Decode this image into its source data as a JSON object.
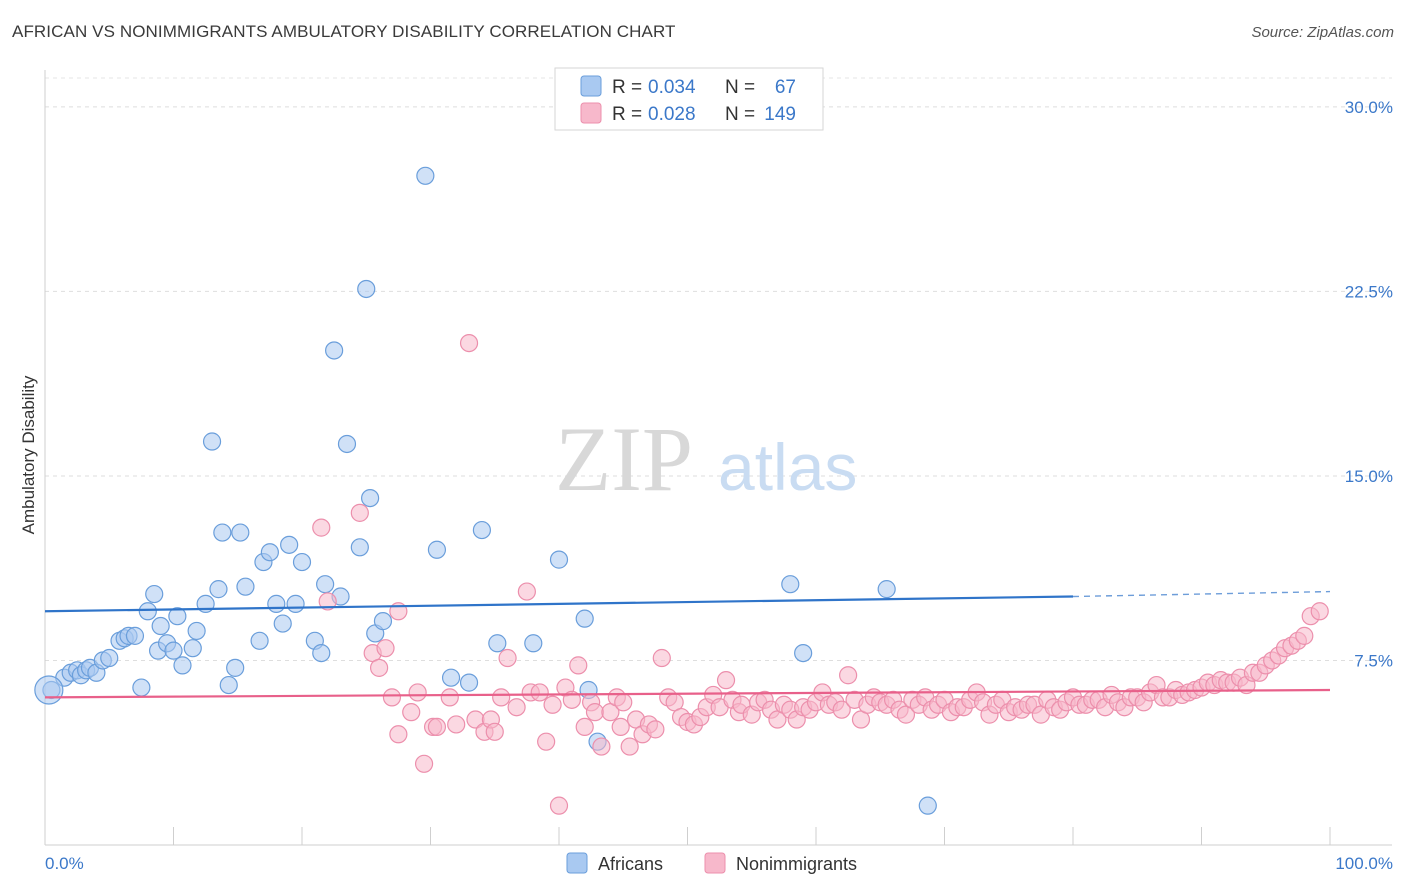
{
  "header": {
    "title": "AFRICAN VS NONIMMIGRANTS AMBULATORY DISABILITY CORRELATION CHART",
    "source": "Source: ZipAtlas.com"
  },
  "watermark": {
    "zip": "ZIP",
    "atlas": "atlas"
  },
  "legend": {
    "rows": [
      {
        "r_label": "R = ",
        "r_value": "0.034",
        "n_label": "N = ",
        "n_value": "67",
        "color": "#a9c9f1"
      },
      {
        "r_label": "R = ",
        "r_value": "0.028",
        "n_label": "N = ",
        "n_value": "149",
        "color": "#f7b8cb"
      }
    ]
  },
  "chart_data": {
    "type": "scatter",
    "title": "AFRICAN VS NONIMMIGRANTS AMBULATORY DISABILITY CORRELATION CHART",
    "ylabel": "Ambulatory Disability",
    "xlabel": "",
    "xlim": [
      0,
      100
    ],
    "ylim": [
      0,
      31.5
    ],
    "x_tick_labels": [
      "0.0%",
      "100.0%"
    ],
    "y_ticks": [
      7.5,
      15.0,
      22.5,
      30.0
    ],
    "y_tick_labels": [
      "7.5%",
      "15.0%",
      "22.5%",
      "30.0%"
    ],
    "grid": "horizontal dashed",
    "legend_position": "top-center",
    "series": [
      {
        "name": "Africans",
        "color": "#a9c9f1",
        "stroke": "#6a9edb",
        "trend": {
          "x0": 0,
          "y0": 9.5,
          "x1": 80,
          "y1": 10.1,
          "dashed_to": 100,
          "y_dashed_end": 10.3,
          "color": "#2f74c9"
        },
        "points": [
          [
            0.5,
            6.3
          ],
          [
            1.5,
            6.8
          ],
          [
            2.0,
            7.0
          ],
          [
            2.5,
            7.1
          ],
          [
            2.8,
            6.9
          ],
          [
            3.2,
            7.1
          ],
          [
            3.5,
            7.2
          ],
          [
            4,
            7.0
          ],
          [
            4.5,
            7.5
          ],
          [
            5,
            7.6
          ],
          [
            5.8,
            8.3
          ],
          [
            6.2,
            8.4
          ],
          [
            6.5,
            8.5
          ],
          [
            7,
            8.5
          ],
          [
            8.0,
            9.5
          ],
          [
            7.5,
            6.4
          ],
          [
            8.5,
            10.2
          ],
          [
            8.8,
            7.9
          ],
          [
            9.0,
            8.9
          ],
          [
            9.5,
            8.2
          ],
          [
            10,
            7.9
          ],
          [
            10.3,
            9.3
          ],
          [
            10.7,
            7.3
          ],
          [
            11.5,
            8.0
          ],
          [
            11.8,
            8.7
          ],
          [
            12.5,
            9.8
          ],
          [
            13,
            16.4
          ],
          [
            13.5,
            10.4
          ],
          [
            13.8,
            12.7
          ],
          [
            14.3,
            6.5
          ],
          [
            14.8,
            7.2
          ],
          [
            15.2,
            12.7
          ],
          [
            15.6,
            10.5
          ],
          [
            16.7,
            8.3
          ],
          [
            17,
            11.5
          ],
          [
            17.5,
            11.9
          ],
          [
            18,
            9.8
          ],
          [
            18.5,
            9.0
          ],
          [
            19,
            12.2
          ],
          [
            19.5,
            9.8
          ],
          [
            20,
            11.5
          ],
          [
            21,
            8.3
          ],
          [
            21.5,
            7.8
          ],
          [
            21.8,
            10.6
          ],
          [
            22.5,
            20.1
          ],
          [
            23,
            10.1
          ],
          [
            23.5,
            16.3
          ],
          [
            24.5,
            12.1
          ],
          [
            25,
            22.6
          ],
          [
            25.3,
            14.1
          ],
          [
            25.7,
            8.6
          ],
          [
            26.3,
            9.1
          ],
          [
            29.6,
            27.2
          ],
          [
            30.5,
            12.0
          ],
          [
            31.6,
            6.8
          ],
          [
            33,
            6.6
          ],
          [
            34,
            12.8
          ],
          [
            35.2,
            8.2
          ],
          [
            38,
            8.2
          ],
          [
            40,
            11.6
          ],
          [
            42,
            9.2
          ],
          [
            42.3,
            6.3
          ],
          [
            43,
            4.2
          ],
          [
            58,
            10.6
          ],
          [
            59,
            7.8
          ],
          [
            65.5,
            10.4
          ],
          [
            68.7,
            1.6
          ]
        ]
      },
      {
        "name": "Nonimmigrants",
        "color": "#f7b8cb",
        "stroke": "#ec8fac",
        "trend": {
          "x0": 0,
          "y0": 6.0,
          "x1": 100,
          "y1": 6.3,
          "color": "#e8608a"
        },
        "points": [
          [
            21.5,
            12.9
          ],
          [
            22,
            9.9
          ],
          [
            24.5,
            13.5
          ],
          [
            25.5,
            7.8
          ],
          [
            26,
            7.2
          ],
          [
            26.5,
            8.0
          ],
          [
            27,
            6.0
          ],
          [
            27.5,
            9.5
          ],
          [
            27.5,
            4.5
          ],
          [
            28.5,
            5.4
          ],
          [
            29,
            6.2
          ],
          [
            29.5,
            3.3
          ],
          [
            30.2,
            4.8
          ],
          [
            30.5,
            4.8
          ],
          [
            31.5,
            6.0
          ],
          [
            32,
            4.9
          ],
          [
            33,
            20.4
          ],
          [
            33.5,
            5.1
          ],
          [
            34.2,
            4.6
          ],
          [
            34.7,
            5.1
          ],
          [
            35,
            4.6
          ],
          [
            35.5,
            6.0
          ],
          [
            36,
            7.6
          ],
          [
            36.7,
            5.6
          ],
          [
            37.5,
            10.3
          ],
          [
            37.8,
            6.2
          ],
          [
            38.5,
            6.2
          ],
          [
            39,
            4.2
          ],
          [
            39.5,
            5.7
          ],
          [
            40,
            1.6
          ],
          [
            40.5,
            6.4
          ],
          [
            41,
            5.9
          ],
          [
            41.5,
            7.3
          ],
          [
            42,
            4.8
          ],
          [
            42.5,
            5.8
          ],
          [
            42.8,
            5.4
          ],
          [
            43.3,
            4.0
          ],
          [
            44,
            5.4
          ],
          [
            44.5,
            6.0
          ],
          [
            44.8,
            4.8
          ],
          [
            45,
            5.8
          ],
          [
            45.5,
            4.0
          ],
          [
            46,
            5.1
          ],
          [
            46.5,
            4.5
          ],
          [
            47,
            4.9
          ],
          [
            47.5,
            4.7
          ],
          [
            48,
            7.6
          ],
          [
            48.5,
            6.0
          ],
          [
            49,
            5.8
          ],
          [
            49.5,
            5.2
          ],
          [
            50,
            5.0
          ],
          [
            50.5,
            4.9
          ],
          [
            51,
            5.2
          ],
          [
            51.5,
            5.6
          ],
          [
            52,
            6.1
          ],
          [
            52.5,
            5.6
          ],
          [
            53,
            6.7
          ],
          [
            53.5,
            5.9
          ],
          [
            54,
            5.4
          ],
          [
            54.2,
            5.7
          ],
          [
            55,
            5.3
          ],
          [
            55.5,
            5.8
          ],
          [
            56,
            5.9
          ],
          [
            56.5,
            5.5
          ],
          [
            57,
            5.1
          ],
          [
            57.5,
            5.7
          ],
          [
            58,
            5.5
          ],
          [
            58.5,
            5.1
          ],
          [
            59,
            5.6
          ],
          [
            59.5,
            5.5
          ],
          [
            60,
            5.8
          ],
          [
            60.5,
            6.2
          ],
          [
            61,
            5.7
          ],
          [
            61.5,
            5.8
          ],
          [
            62,
            5.5
          ],
          [
            62.5,
            6.9
          ],
          [
            63,
            5.9
          ],
          [
            63.5,
            5.1
          ],
          [
            64,
            5.7
          ],
          [
            64.5,
            6.0
          ],
          [
            65,
            5.8
          ],
          [
            65.5,
            5.7
          ],
          [
            66,
            5.9
          ],
          [
            66.5,
            5.5
          ],
          [
            67,
            5.3
          ],
          [
            67.5,
            5.9
          ],
          [
            68,
            5.7
          ],
          [
            68.5,
            6.0
          ],
          [
            69,
            5.5
          ],
          [
            69.5,
            5.7
          ],
          [
            70,
            5.9
          ],
          [
            70.5,
            5.4
          ],
          [
            71,
            5.6
          ],
          [
            71.5,
            5.6
          ],
          [
            72,
            5.9
          ],
          [
            72.5,
            6.2
          ],
          [
            73,
            5.8
          ],
          [
            73.5,
            5.3
          ],
          [
            74,
            5.7
          ],
          [
            74.5,
            5.9
          ],
          [
            75,
            5.4
          ],
          [
            75.5,
            5.6
          ],
          [
            76,
            5.5
          ],
          [
            76.5,
            5.7
          ],
          [
            77,
            5.7
          ],
          [
            77.5,
            5.3
          ],
          [
            78,
            5.9
          ],
          [
            78.5,
            5.6
          ],
          [
            79,
            5.5
          ],
          [
            79.5,
            5.8
          ],
          [
            80,
            6.0
          ],
          [
            80.5,
            5.7
          ],
          [
            81,
            5.7
          ],
          [
            81.5,
            5.9
          ],
          [
            82,
            5.9
          ],
          [
            82.5,
            5.6
          ],
          [
            83,
            6.1
          ],
          [
            83.5,
            5.8
          ],
          [
            84,
            5.6
          ],
          [
            84.5,
            6.0
          ],
          [
            85,
            6.0
          ],
          [
            85.5,
            5.8
          ],
          [
            86,
            6.2
          ],
          [
            86.5,
            6.5
          ],
          [
            87,
            6.0
          ],
          [
            87.5,
            6.0
          ],
          [
            88,
            6.3
          ],
          [
            88.5,
            6.1
          ],
          [
            89,
            6.2
          ],
          [
            89.5,
            6.3
          ],
          [
            90,
            6.4
          ],
          [
            90.5,
            6.6
          ],
          [
            91,
            6.5
          ],
          [
            91.5,
            6.7
          ],
          [
            92,
            6.6
          ],
          [
            92.5,
            6.6
          ],
          [
            93,
            6.8
          ],
          [
            93.5,
            6.5
          ],
          [
            94,
            7.0
          ],
          [
            94.5,
            7.0
          ],
          [
            95,
            7.3
          ],
          [
            95.5,
            7.5
          ],
          [
            96,
            7.7
          ],
          [
            96.5,
            8.0
          ],
          [
            97,
            8.1
          ],
          [
            97.5,
            8.3
          ],
          [
            98,
            8.5
          ],
          [
            98.5,
            9.3
          ],
          [
            99.2,
            9.5
          ]
        ]
      }
    ]
  },
  "bottom_legend": [
    {
      "label": "Africans",
      "color": "#a9c9f1"
    },
    {
      "label": "Nonimmigrants",
      "color": "#f7b8cb"
    }
  ]
}
